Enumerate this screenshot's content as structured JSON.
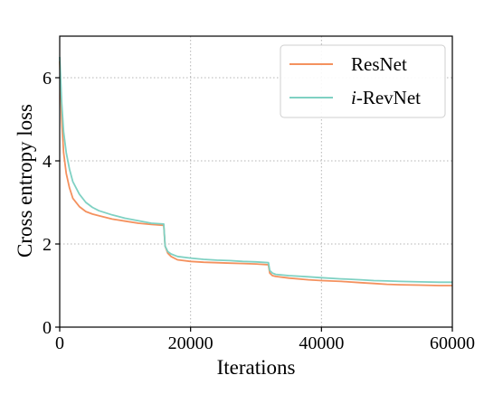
{
  "chart_data": {
    "type": "line",
    "xlabel": "Iterations",
    "ylabel": "Cross entropy loss",
    "xlim": [
      0,
      60000
    ],
    "ylim": [
      0,
      7
    ],
    "x_ticks": [
      0,
      20000,
      40000,
      60000
    ],
    "x_tick_labels": [
      "0",
      "20000",
      "40000",
      "60000"
    ],
    "y_ticks": [
      0,
      2,
      4,
      6
    ],
    "y_tick_labels": [
      "0",
      "2",
      "4",
      "6"
    ],
    "grid": true,
    "grid_style": "dotted",
    "legend_position": "top-right",
    "series": [
      {
        "name": "ResNet",
        "color": "#f4915e",
        "x": [
          0,
          300,
          600,
          1000,
          1500,
          2000,
          3000,
          4000,
          5000,
          6000,
          8000,
          10000,
          12000,
          14000,
          15900,
          16100,
          16500,
          17000,
          18000,
          20000,
          22000,
          24000,
          26000,
          28000,
          30000,
          31900,
          32100,
          32500,
          33000,
          35000,
          38000,
          40000,
          43000,
          46000,
          48000,
          50000,
          52000,
          55000,
          58000,
          60000
        ],
        "y": [
          6.4,
          5.0,
          4.2,
          3.7,
          3.35,
          3.1,
          2.9,
          2.78,
          2.72,
          2.68,
          2.6,
          2.55,
          2.5,
          2.47,
          2.45,
          1.95,
          1.78,
          1.7,
          1.62,
          1.58,
          1.56,
          1.55,
          1.54,
          1.53,
          1.52,
          1.5,
          1.3,
          1.24,
          1.22,
          1.18,
          1.14,
          1.12,
          1.1,
          1.07,
          1.05,
          1.03,
          1.02,
          1.01,
          1.0,
          1.0
        ]
      },
      {
        "name": "i-RevNet",
        "color": "#7fd1c3",
        "x": [
          0,
          300,
          600,
          1000,
          1500,
          2000,
          3000,
          4000,
          5000,
          6000,
          8000,
          10000,
          12000,
          14000,
          15900,
          16100,
          16500,
          17000,
          18000,
          20000,
          22000,
          24000,
          26000,
          28000,
          30000,
          31900,
          32100,
          32500,
          33000,
          35000,
          38000,
          40000,
          43000,
          46000,
          48000,
          50000,
          52000,
          55000,
          58000,
          60000
        ],
        "y": [
          6.5,
          5.4,
          4.7,
          4.2,
          3.8,
          3.5,
          3.2,
          3.0,
          2.88,
          2.8,
          2.7,
          2.62,
          2.56,
          2.5,
          2.48,
          1.95,
          1.82,
          1.76,
          1.7,
          1.66,
          1.63,
          1.61,
          1.6,
          1.58,
          1.57,
          1.55,
          1.36,
          1.3,
          1.27,
          1.24,
          1.21,
          1.19,
          1.16,
          1.14,
          1.12,
          1.11,
          1.1,
          1.09,
          1.08,
          1.08
        ]
      }
    ],
    "legend": {
      "entries": [
        {
          "prefix": "",
          "label": "ResNet"
        },
        {
          "prefix": "i",
          "label": "-RevNet"
        }
      ]
    }
  }
}
